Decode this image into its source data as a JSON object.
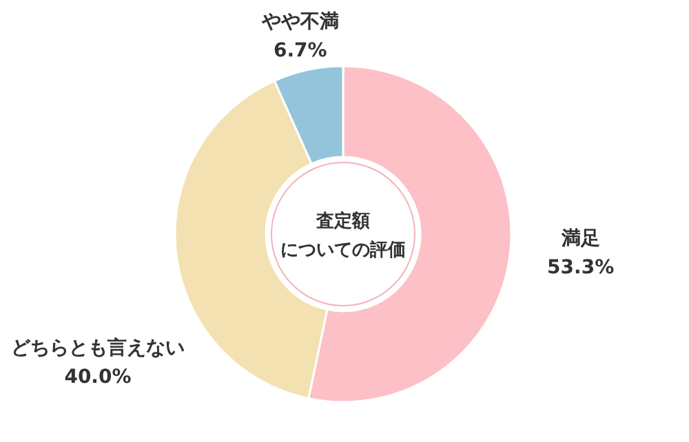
{
  "chart_data": {
    "type": "donut",
    "annotations": [
      "査定額",
      "についての評価"
    ],
    "categories": [
      "満足",
      "どちらとも言えない",
      "やや不満"
    ],
    "values": [
      53.3,
      40.0,
      6.7
    ],
    "colors": [
      "#fcc0c6",
      "#f4e1b2",
      "#94c4dc"
    ],
    "value_labels": [
      "53.3%",
      "40.0%",
      "6.7%"
    ]
  }
}
